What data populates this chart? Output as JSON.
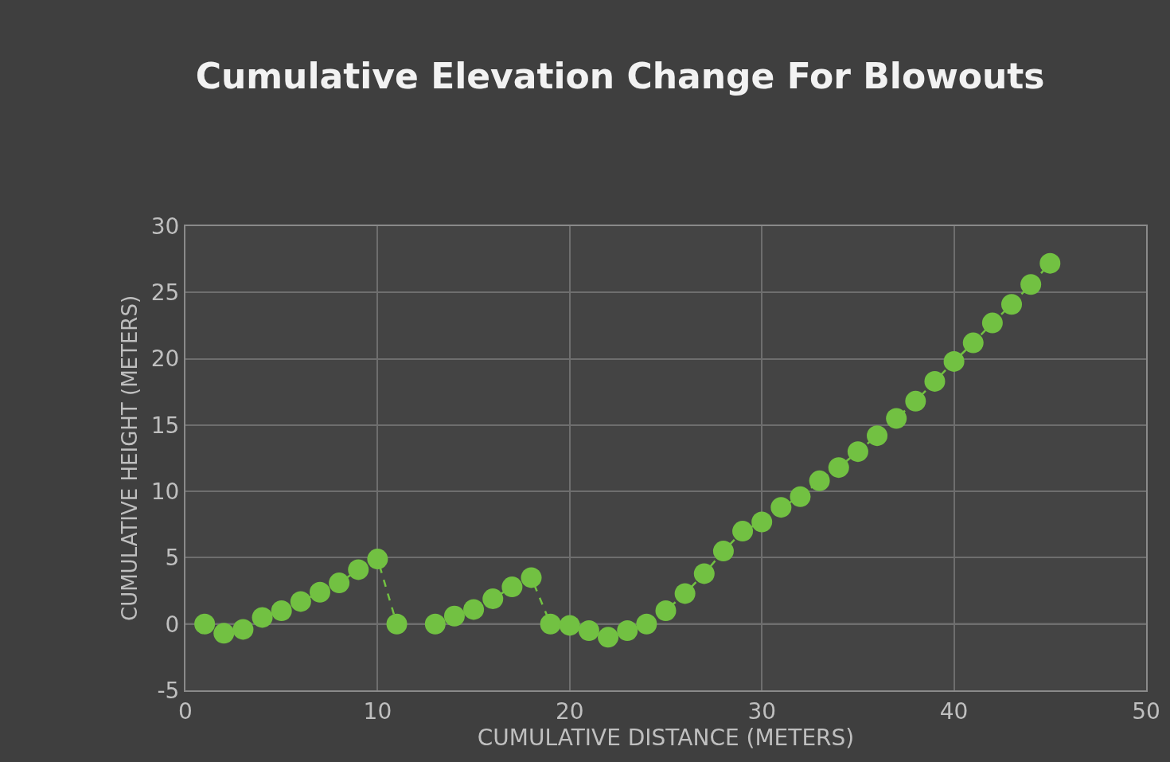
{
  "chart_data": {
    "type": "line",
    "title": "Cumulative Elevation Change For Blowouts",
    "xlabel": "CUMULATIVE DISTANCE (METERS)",
    "ylabel": "CUMULATIVE HEIGHT (METERS)",
    "x": [
      1,
      2,
      3,
      4,
      5,
      6,
      7,
      8,
      9,
      10,
      11,
      12,
      13,
      14,
      15,
      16,
      17,
      18,
      19,
      20,
      21,
      22,
      23,
      24,
      25,
      26,
      27,
      28,
      29,
      30,
      31,
      32,
      33,
      34,
      35,
      36,
      37,
      38,
      39,
      40,
      41,
      42,
      43,
      44,
      45
    ],
    "series": [
      {
        "color": "#72c142",
        "values": [
          0,
          -0.7,
          -0.4,
          0.5,
          1.0,
          1.7,
          2.4,
          3.1,
          4.1,
          4.9,
          0,
          null,
          0,
          0.6,
          1.1,
          1.9,
          2.8,
          3.5,
          0,
          -0.1,
          -0.5,
          -1.0,
          -0.5,
          0,
          1.0,
          2.3,
          3.8,
          5.5,
          7.0,
          7.7,
          8.8,
          9.6,
          10.8,
          11.8,
          13.0,
          14.2,
          15.5,
          16.8,
          18.3,
          19.8,
          21.2,
          22.7,
          24.1,
          25.6,
          27.2
        ]
      }
    ],
    "xlim": [
      0,
      50
    ],
    "xticks": [
      0,
      10,
      20,
      30,
      40,
      50
    ],
    "ylim": [
      -5,
      30
    ],
    "yticks": [
      -5,
      0,
      5,
      10,
      15,
      20,
      25,
      30
    ],
    "grid": true,
    "marker": "circle",
    "line_style": "dashed"
  }
}
